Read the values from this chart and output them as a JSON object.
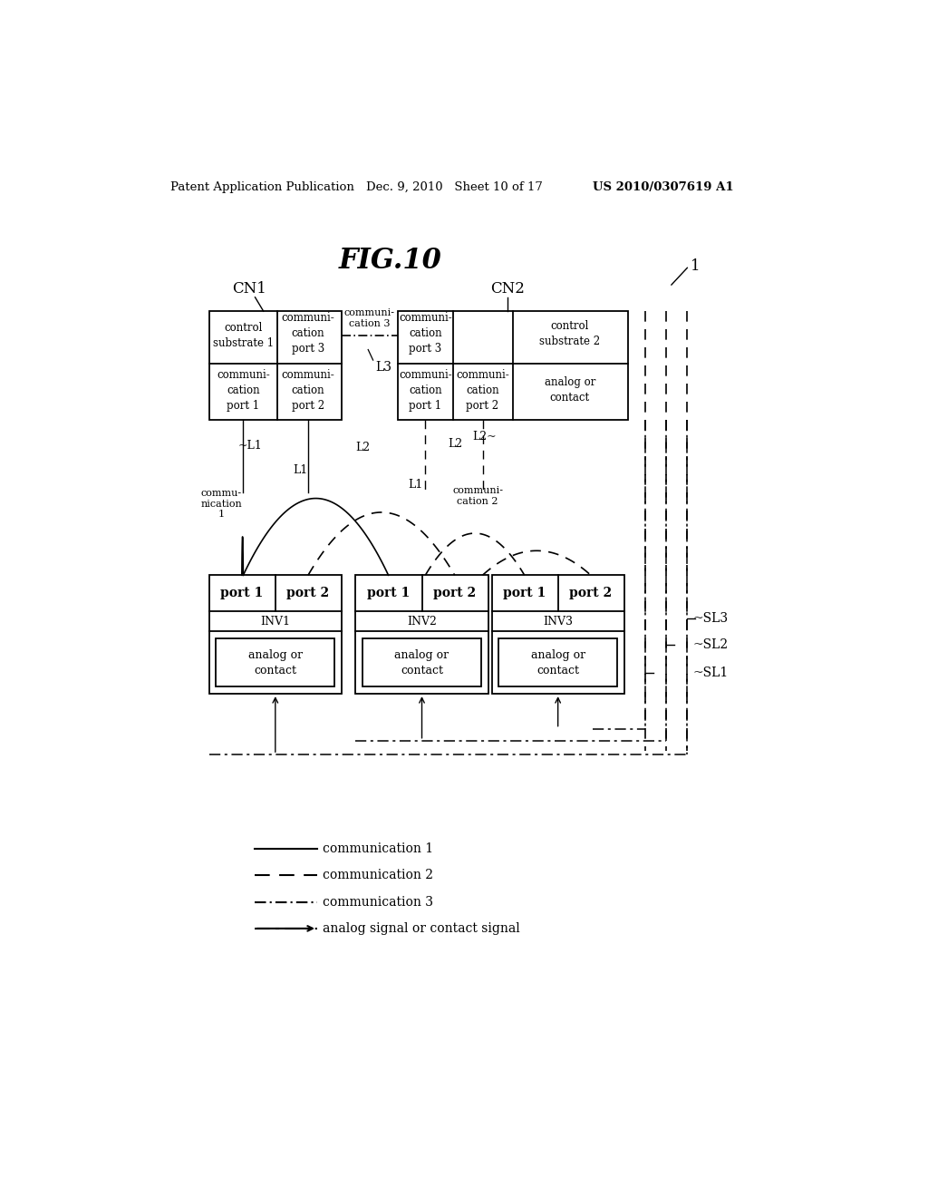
{
  "bg_color": "#ffffff",
  "header_left": "Patent Application Publication",
  "header_mid": "Dec. 9, 2010   Sheet 10 of 17",
  "header_right": "US 2010/0307619 A1",
  "fig_title": "FIG.10"
}
